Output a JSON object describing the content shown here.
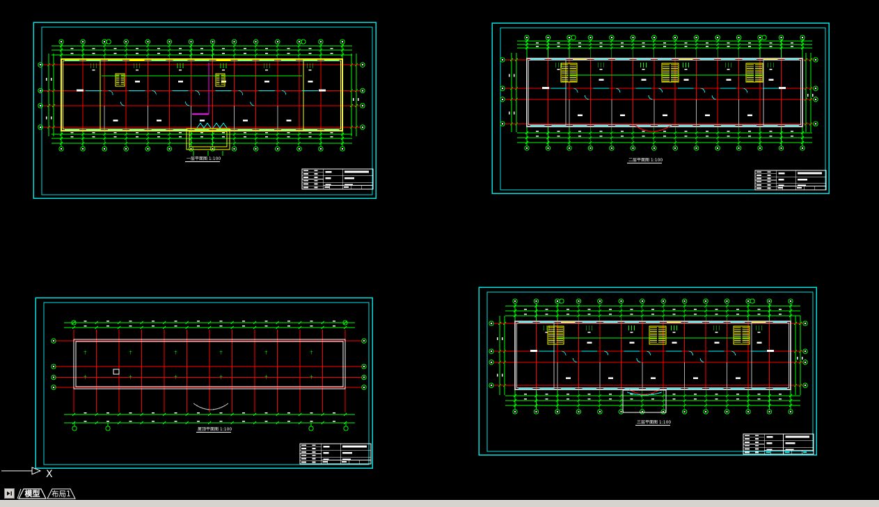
{
  "app": {
    "kind": "cad-model-space",
    "background": "#000000"
  },
  "colors": {
    "frame": "#00e0e0",
    "dimension": "#00ff00",
    "axis_grid": "#ff0000",
    "stair": "#ffff00",
    "window": "#00ffff",
    "wall_gray": "#c0c0c0",
    "highlight": "#ff00ff",
    "annotation": "#ffffff",
    "partition_gray": "#b0b0b0",
    "taskbar": "#d6d3ce"
  },
  "ucs": {
    "axis_label": "X"
  },
  "statusbar": {
    "nav_icon": "next-tab-arrow",
    "tabs": [
      {
        "label": "模型",
        "active": true
      },
      {
        "label": "布局1",
        "active": false
      }
    ]
  },
  "viewports": [
    {
      "name": "first-floor-plan",
      "title": "一层平面图 1:100",
      "type": "floor",
      "outer": [
        48,
        32,
        492,
        253
      ],
      "building": [
        88,
        85,
        404,
        103
      ],
      "wall": "#ffff00",
      "nv": 14,
      "nhf": [
        0.08,
        0.44,
        0.65,
        0.95
      ],
      "topBubbleY": 60,
      "botBubbleY": 214,
      "leftBubbleX": 58,
      "rightBubbleX": 521,
      "dimTop": [
        66,
        72,
        79
      ],
      "dimBot": [
        193,
        199,
        206
      ],
      "dimLeft": [
        70,
        77
      ],
      "dimRight": [
        505,
        512
      ],
      "stairs": [
        [
          166,
          106,
          13,
          18
        ],
        [
          310,
          106,
          13,
          18
        ]
      ],
      "features": {
        "magenta": [
          300,
          90,
          164,
          276
        ],
        "porchYellow": [
          268,
          185,
          62,
          30
        ],
        "zigzag": true
      },
      "titlePos": [
        268,
        230
      ],
      "titleBlock": [
        434,
        243,
        102,
        29
      ]
    },
    {
      "name": "second-floor-plan",
      "title": "二层平面图 1:100",
      "type": "floor",
      "outer": [
        707,
        33,
        484,
        245
      ],
      "building": [
        757,
        84,
        396,
        98
      ],
      "wall": "#c0c0c0",
      "nv": 14,
      "nhf": [
        0.02,
        0.44,
        0.6,
        0.96
      ],
      "topBubbleY": 54,
      "botBubbleY": 213,
      "leftBubbleX": 722,
      "rightBubbleX": 1172,
      "dimTop": [
        59,
        64,
        69
      ],
      "dimBot": [
        191,
        198,
        205
      ],
      "dimLeft": [
        735,
        742
      ],
      "dimRight": [
        1158,
        1165
      ],
      "stairs": [
        [
          806,
          91,
          23,
          27
        ],
        [
          951,
          91,
          24,
          27
        ],
        [
          1072,
          91,
          24,
          27
        ]
      ],
      "features": {
        "arcRed": [
          938,
          181,
          25,
          8
        ]
      },
      "titlePos": [
        903,
        232
      ],
      "titleBlock": [
        1085,
        245,
        102,
        28
      ]
    },
    {
      "name": "roof-plan",
      "title": "屋顶平面图 1:100",
      "type": "roof",
      "outer": [
        51,
        428,
        484,
        245
      ],
      "building": [
        106,
        488,
        390,
        71
      ],
      "wall": "#ffffff",
      "nv": 13,
      "nhf": [
        0.03,
        0.55,
        0.77,
        0.97
      ],
      "topBubbleY": 464,
      "botBubbleY": 616,
      "leftBubbleX": 77,
      "rightBubbleX": 523,
      "dimTop": [
        464,
        471
      ],
      "dimBot": [
        596,
        608
      ],
      "botBubbleXs": [
        107,
        155,
        447,
        497
      ],
      "stairs": [],
      "features": {
        "square": [
          163,
          531,
          8,
          7
        ],
        "arcGray": [
          278,
          580,
          50,
          9
        ]
      },
      "titlePos": [
        284,
        619
      ],
      "titleBlock": [
        431,
        638,
        102,
        29
      ]
    },
    {
      "name": "third-floor-plan",
      "title": "三层平面图 1:100",
      "type": "floor",
      "outer": [
        688,
        413,
        485,
        241
      ],
      "building": [
        740,
        462,
        396,
        98
      ],
      "wall": "#c0c0c0",
      "nv": 14,
      "nhf": [
        0.03,
        0.44,
        0.6,
        0.94
      ],
      "topBubbleY": 433,
      "botBubbleY": 592,
      "leftBubbleX": 706,
      "rightBubbleX": 1157,
      "dimTop": [
        440,
        447,
        454
      ],
      "dimBot": [
        569,
        576,
        583
      ],
      "dimLeft": [
        718,
        725
      ],
      "dimRight": [
        1143,
        1150
      ],
      "stairs": [
        [
          787,
          469,
          23,
          26
        ],
        [
          933,
          469,
          24,
          26
        ],
        [
          1054,
          469,
          23,
          26
        ]
      ],
      "features": {
        "arcRed": [
          926,
          560,
          22,
          7
        ],
        "porchWhite": [
          895,
          561,
          62,
          32
        ]
      },
      "titlePos": [
        915,
        609
      ],
      "tbCyan": true,
      "titleBlock": [
        1068,
        624,
        101,
        29
      ]
    }
  ]
}
